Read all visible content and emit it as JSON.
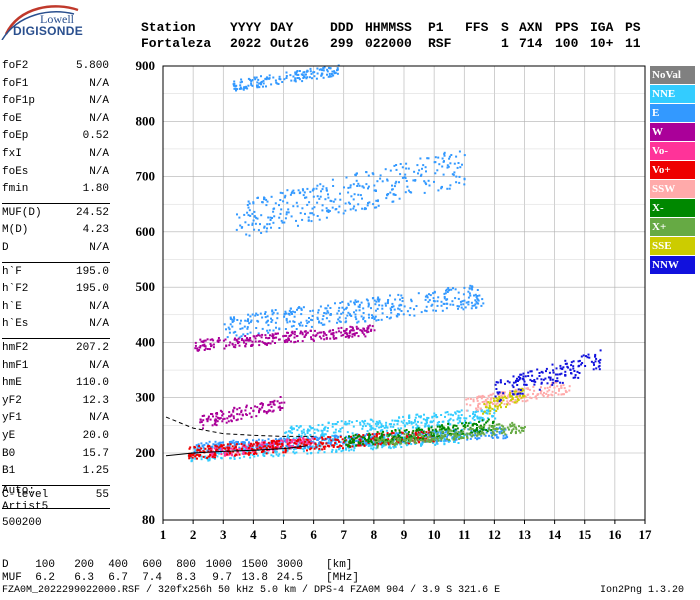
{
  "logo": {
    "top": "Lowell",
    "bottom": "DIGISONDE"
  },
  "header": {
    "labels": [
      "Station",
      "YYYY",
      "DAY",
      "DDD",
      "HHMMSS",
      "P1",
      "FFS",
      "S",
      "AXN",
      "PPS",
      "IGA",
      "PS"
    ],
    "values": [
      "Fortaleza",
      "2022",
      "Out26",
      "299",
      "022000",
      "RSF",
      "",
      "1",
      "714",
      "100",
      "10+",
      "11"
    ]
  },
  "params": [
    {
      "name": "foF2",
      "value": "5.800"
    },
    {
      "name": "foF1",
      "value": "N/A"
    },
    {
      "name": "foF1p",
      "value": "N/A"
    },
    {
      "name": "foE",
      "value": "N/A"
    },
    {
      "name": "foEp",
      "value": "0.52"
    },
    {
      "name": "fxI",
      "value": "N/A"
    },
    {
      "name": "foEs",
      "value": "N/A"
    },
    {
      "name": "fmin",
      "value": "1.80"
    },
    {
      "name": "MUF(D)",
      "value": "24.52"
    },
    {
      "name": "M(D)",
      "value": "4.23"
    },
    {
      "name": "D",
      "value": "N/A"
    },
    {
      "name": "h`F",
      "value": "195.0"
    },
    {
      "name": "h`F2",
      "value": "195.0"
    },
    {
      "name": "h`E",
      "value": "N/A"
    },
    {
      "name": "h`Es",
      "value": "N/A"
    },
    {
      "name": "hmF2",
      "value": "207.2"
    },
    {
      "name": "hmF1",
      "value": "N/A"
    },
    {
      "name": "hmE",
      "value": "110.0"
    },
    {
      "name": "yF2",
      "value": "12.3"
    },
    {
      "name": "yF1",
      "value": "N/A"
    },
    {
      "name": "yE",
      "value": "20.0"
    },
    {
      "name": "B0",
      "value": "15.7"
    },
    {
      "name": "B1",
      "value": "1.25"
    },
    {
      "name": "C-level",
      "value": "55"
    }
  ],
  "autoscaling": {
    "line1": "Auto:",
    "line2": "Artist5",
    "line3": "500200"
  },
  "legend": [
    {
      "label": "NoVal",
      "color": "#808080"
    },
    {
      "label": "NNE",
      "color": "#33ccff"
    },
    {
      "label": "E",
      "color": "#3399ff"
    },
    {
      "label": "W",
      "color": "#aa0099"
    },
    {
      "label": "Vo-",
      "color": "#ff3399"
    },
    {
      "label": "Vo+",
      "color": "#ee0000"
    },
    {
      "label": "SSW",
      "color": "#ffaaaa"
    },
    {
      "label": "X-",
      "color": "#008800"
    },
    {
      "label": "X+",
      "color": "#66aa44"
    },
    {
      "label": "SSE",
      "color": "#cccc00"
    },
    {
      "label": "NNW",
      "color": "#1111dd"
    }
  ],
  "mufTable": {
    "dLabel": "D",
    "mufLabel": "MUF",
    "d": [
      "100",
      "200",
      "400",
      "600",
      "800",
      "1000",
      "1500",
      "3000",
      "[km]"
    ],
    "muf": [
      "6.2",
      "6.3",
      "6.7",
      "7.4",
      "8.3",
      "9.7",
      "13.8",
      "24.5",
      "[MHz]"
    ]
  },
  "footer": {
    "left": "FZA0M_2022299022000.RSF / 320fx256h 50 kHz 5.0 km / DPS-4 FZA0M 904 / 3.9 S 321.6 E",
    "right": "Ion2Png 1.3.20"
  },
  "chart_data": {
    "type": "scatter",
    "xlim": [
      1,
      17
    ],
    "ylim": [
      80,
      900
    ],
    "xticks": [
      "1",
      "2",
      "3",
      "4",
      "5",
      "6",
      "7",
      "8",
      "9",
      "10",
      "11",
      "12",
      "13",
      "14",
      "15",
      "16",
      "17"
    ],
    "yticks": [
      "80",
      "200",
      "300",
      "400",
      "500",
      "600",
      "700",
      "800",
      "900"
    ],
    "grid": true,
    "legend_position": "right",
    "traces": [
      {
        "name": "NNE",
        "ranges": [
          [
            1.8,
            11.0,
            190,
            240
          ],
          [
            5.0,
            12.0,
            230,
            280
          ]
        ]
      },
      {
        "name": "E",
        "ranges": [
          [
            2.0,
            12.5,
            205,
            245
          ],
          [
            3.0,
            11.6,
            415,
            500
          ],
          [
            3.4,
            11.0,
            600,
            740
          ],
          [
            3.3,
            6.8,
            860,
            900
          ]
        ]
      },
      {
        "name": "W",
        "ranges": [
          [
            2.2,
            5.0,
            250,
            300
          ],
          [
            2.0,
            8.0,
            390,
            430
          ]
        ]
      },
      {
        "name": "Vo-",
        "ranges": [
          [
            2.5,
            6.0,
            195,
            230
          ]
        ]
      },
      {
        "name": "Vo+",
        "ranges": [
          [
            1.8,
            10.0,
            195,
            240
          ]
        ]
      },
      {
        "name": "SSW",
        "ranges": [
          [
            11.0,
            14.5,
            280,
            330
          ]
        ]
      },
      {
        "name": "X-",
        "ranges": [
          [
            7.0,
            12.0,
            215,
            260
          ]
        ]
      },
      {
        "name": "X+",
        "ranges": [
          [
            8.0,
            13.0,
            215,
            255
          ]
        ]
      },
      {
        "name": "SSE",
        "ranges": [
          [
            11.5,
            13.0,
            270,
            320
          ]
        ]
      },
      {
        "name": "NNW",
        "ranges": [
          [
            12.0,
            15.5,
            300,
            380
          ]
        ]
      }
    ]
  }
}
